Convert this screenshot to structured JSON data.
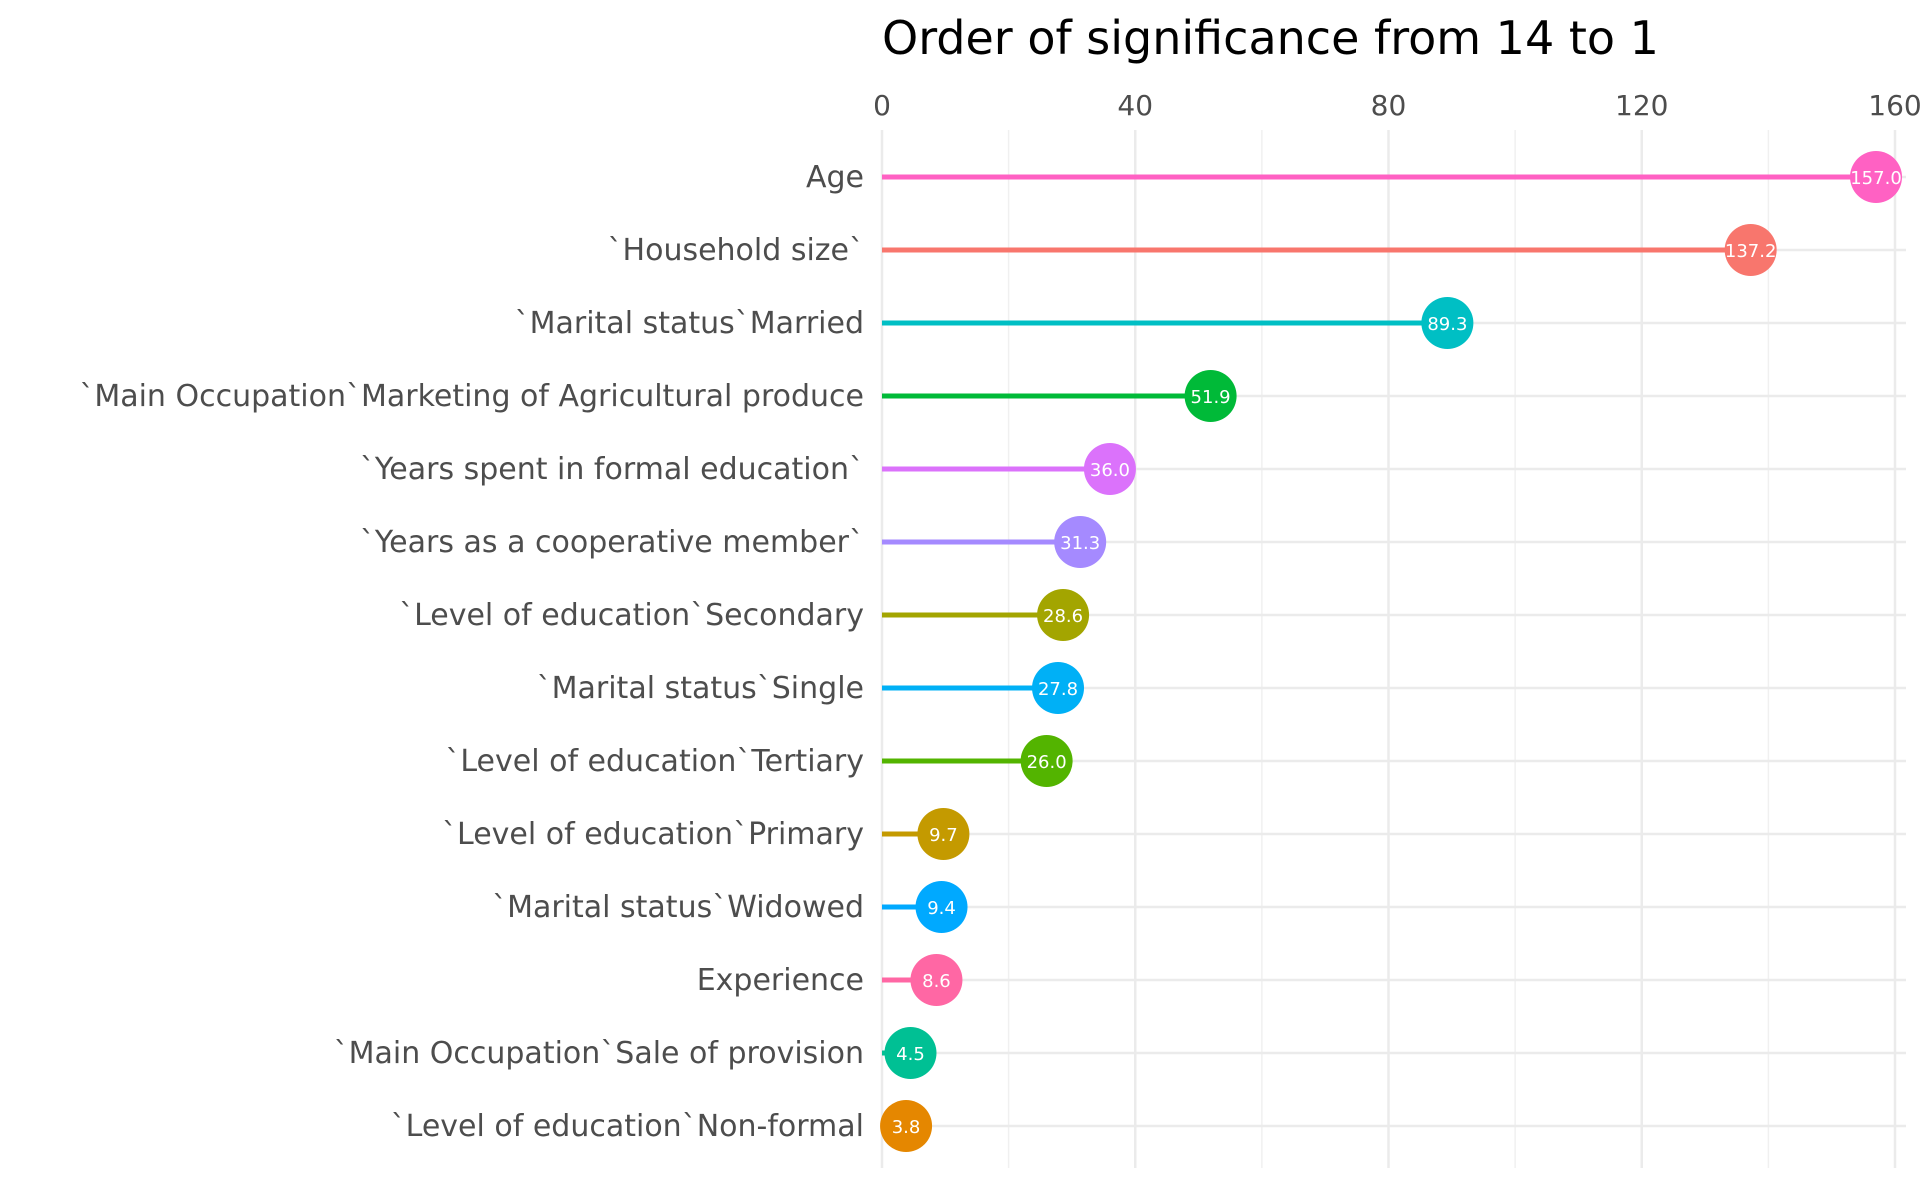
{
  "chart_data": {
    "type": "lollipop",
    "title": "Order of significance from 14 to 1",
    "xlabel": "",
    "ylabel": "",
    "x_axis_position": "top",
    "xlim": [
      0,
      160
    ],
    "x_ticks": [
      0,
      40,
      80,
      120,
      160
    ],
    "grid": true,
    "legend": "none",
    "categories": [
      "Age",
      "`Household size`",
      "`Marital status`Married",
      "`Main Occupation`Marketing of Agricultural produce",
      "`Years spent in formal education`",
      "`Years as a cooperative member`",
      "`Level  of education`Secondary",
      "`Marital status`Single",
      "`Level  of education`Tertiary",
      "`Level  of education`Primary",
      "`Marital status`Widowed",
      "Experience",
      "`Main Occupation`Sale of provision",
      "`Level  of education`Non-formal"
    ],
    "values": [
      157.0,
      137.2,
      89.3,
      51.9,
      36.0,
      31.3,
      28.6,
      27.8,
      26.0,
      9.7,
      9.4,
      8.6,
      4.5,
      3.8
    ],
    "value_labels": [
      "157.0",
      "137.2",
      "89.3",
      "51.9",
      "36.0",
      "31.3",
      "28.6",
      "27.8",
      "26.0",
      "9.7",
      "9.4",
      "8.6",
      "4.5",
      "3.8"
    ],
    "colors": [
      "#FF61C3",
      "#F8766D",
      "#00BFC4",
      "#00BA38",
      "#DB72FB",
      "#A58AFF",
      "#A3A500",
      "#00B0F6",
      "#53B400",
      "#C49A00",
      "#00A9FF",
      "#FF67A4",
      "#00C094",
      "#E58700"
    ]
  }
}
